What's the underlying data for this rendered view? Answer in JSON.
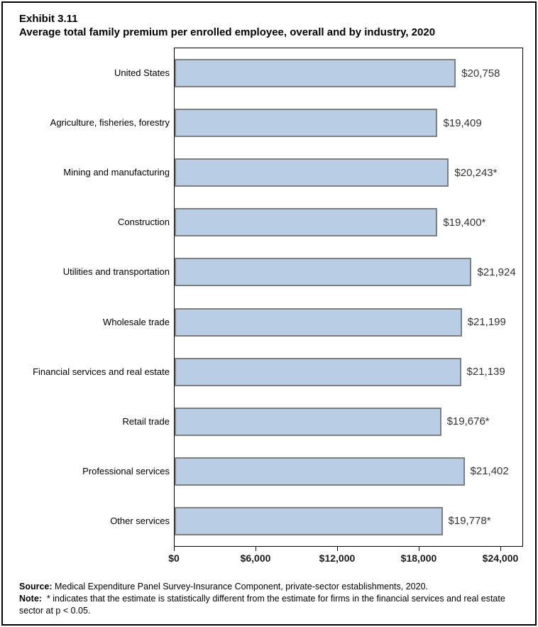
{
  "title": {
    "exhibit": "Exhibit 3.11",
    "subtitle": "Average total family premium per enrolled employee, overall and by industry, 2020"
  },
  "chart_data": {
    "type": "bar",
    "orientation": "horizontal",
    "title": "Average total family premium per enrolled employee, overall and by industry, 2020",
    "categories": [
      "United States",
      "Agriculture, fisheries, forestry",
      "Mining and manufacturing",
      "Construction",
      "Utilities and transportation",
      "Wholesale trade",
      "Financial services and real estate",
      "Retail trade",
      "Professional services",
      "Other services"
    ],
    "values": [
      20758,
      19409,
      20243,
      19400,
      21924,
      21199,
      21139,
      19676,
      21402,
      19778
    ],
    "value_labels": [
      "$20,758",
      "$19,409",
      "$20,243*",
      "$19,400*",
      "$21,924",
      "$21,199",
      "$21,139",
      "$19,676*",
      "$21,402",
      "$19,778*"
    ],
    "xlabel": "",
    "ylabel": "",
    "xlim": [
      0,
      25670
    ],
    "x_ticks": [
      {
        "value": 0,
        "label": "$0"
      },
      {
        "value": 6000,
        "label": "$6,000"
      },
      {
        "value": 12000,
        "label": "$12,000"
      },
      {
        "value": 18000,
        "label": "$18,000"
      },
      {
        "value": 24000,
        "label": "$24,000"
      }
    ],
    "grid": false,
    "legend": false,
    "bar_color": "#b9cde5",
    "bar_border_color": "#7f7f7f"
  },
  "footer": {
    "source_label": "Source:",
    "source_text": " Medical Expenditure Panel Survey-Insurance Component, private-sector establishments, 2020.",
    "note_label": "Note:",
    "note_text": "  * indicates that the estimate is statistically different from the estimate for firms in the financial services and real estate sector at p < 0.05."
  }
}
